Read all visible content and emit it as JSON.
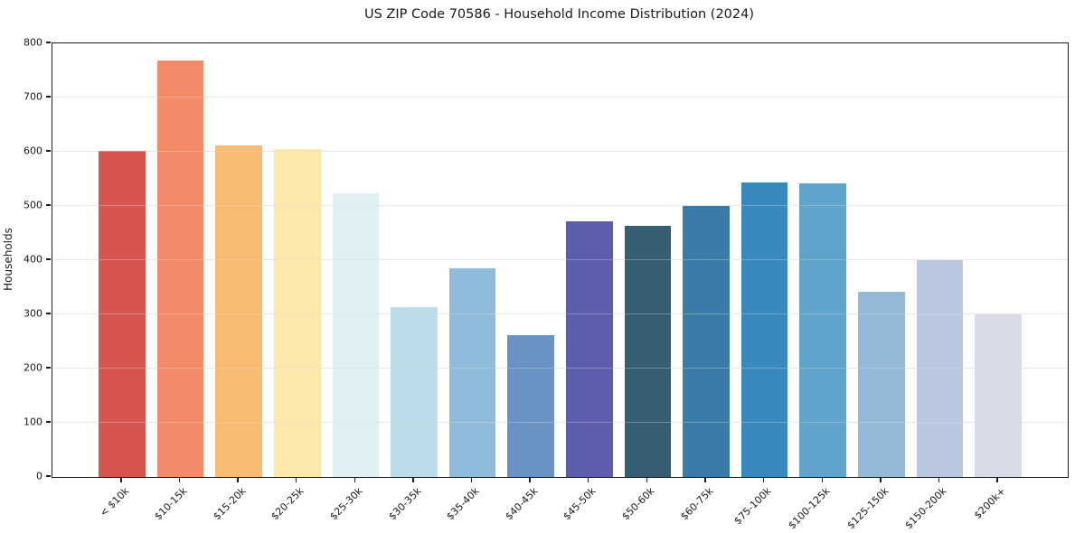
{
  "window": {
    "kind": "matplotlib-style chart figure",
    "background_color": "#ffffff"
  },
  "chart_data": {
    "type": "bar",
    "title": "US ZIP Code 70586 - Household Income Distribution (2024)",
    "xlabel": "",
    "ylabel": "Households",
    "ylim": [
      0,
      800
    ],
    "ytick_step": 100,
    "yticks": [
      0,
      100,
      200,
      300,
      400,
      500,
      600,
      700,
      800
    ],
    "grid": "horizontal",
    "gridline_color": "#ebebeb",
    "legend_position": "none",
    "x_tick_rotation_degrees": 45,
    "categories": [
      "< $10k",
      "$10-15k",
      "$15-20k",
      "$20-25k",
      "$25-30k",
      "$30-35k",
      "$35-40k",
      "$40-45k",
      "$45-50k",
      "$50-60k",
      "$60-75k",
      "$75-100k",
      "$100-125k",
      "$125-150k",
      "$150-200k",
      "$200k+"
    ],
    "values": [
      601,
      769,
      611,
      605,
      524,
      314,
      385,
      262,
      472,
      464,
      500,
      544,
      541,
      342,
      400,
      300
    ],
    "bar_colors": [
      "#d6564f",
      "#f28a67",
      "#f9ba74",
      "#fce8ab",
      "#e0eff3",
      "#bcdcea",
      "#8fbcdb",
      "#6a93c5",
      "#5c5dad",
      "#375f73",
      "#3a7ca8",
      "#388abe",
      "#5fa4ca",
      "#94b8d8",
      "#b9c8e0",
      "#d8dae6"
    ],
    "axis_spine_color": "#1c1c1c",
    "text_color": "#1a1a1a"
  }
}
